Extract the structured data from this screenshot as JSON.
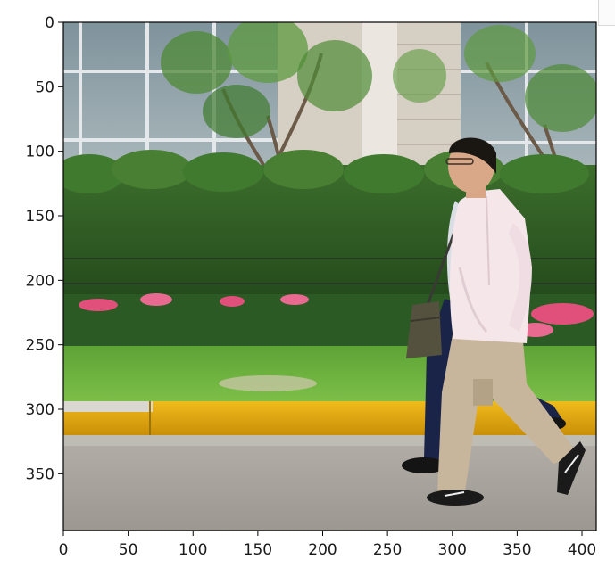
{
  "axes": {
    "x_ticks": [
      "0",
      "50",
      "100",
      "150",
      "200",
      "250",
      "300",
      "350",
      "400"
    ],
    "y_ticks": [
      "0",
      "50",
      "100",
      "150",
      "200",
      "250",
      "300",
      "350"
    ],
    "xlim": [
      0,
      411
    ],
    "ylim": [
      0,
      394
    ],
    "y_inverted": true
  },
  "image": {
    "content": "photo of two men walking along a sidewalk past a grass strip with a yellow curb, a hedge with pink flowers and trees, in front of a building with large windows",
    "colors": {
      "building": "#cfc8bc",
      "window": "#8fa0a6",
      "hedge": "#2f5a26",
      "grass": "#6fb040",
      "curb": "#e0a410",
      "road": "#a39f98",
      "flowers": "#e0507a",
      "shirt": "#f5e6ea",
      "trousers": "#c8b69c",
      "dark_trousers": "#1a2448",
      "hair": "#1a1612"
    }
  }
}
